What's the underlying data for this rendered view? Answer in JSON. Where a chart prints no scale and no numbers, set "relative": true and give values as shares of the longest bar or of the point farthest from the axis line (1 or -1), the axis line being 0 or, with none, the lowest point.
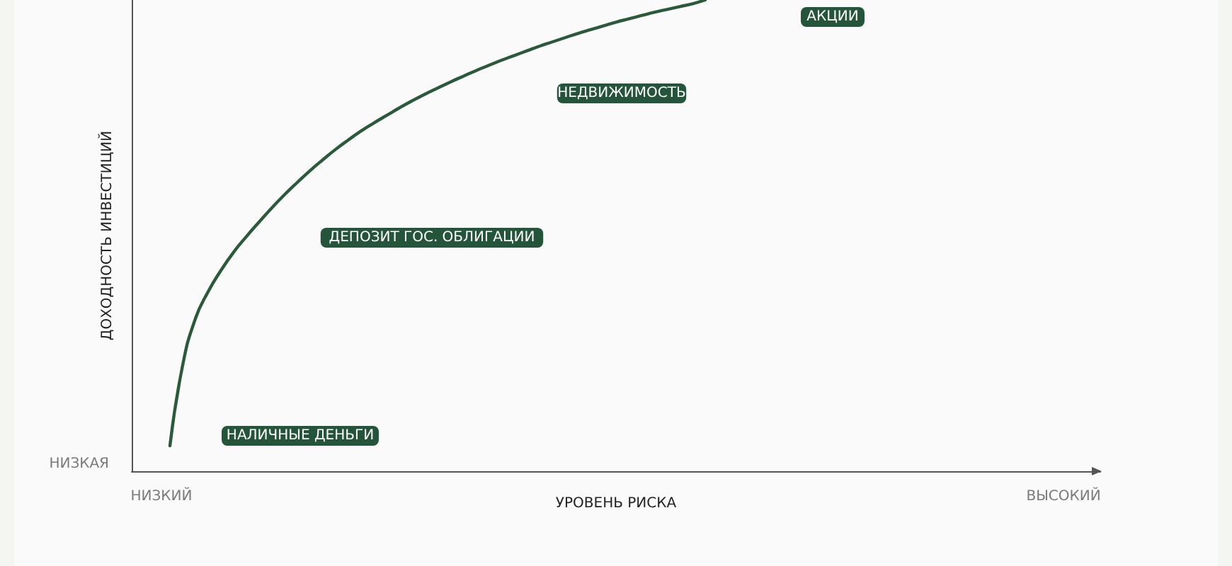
{
  "chart_data": {
    "type": "line",
    "relative": true,
    "xlabel": "УРОВЕНЬ РИСКА",
    "ylabel": "ДОХОДНОСТЬ ИНВЕСТИЦИЙ",
    "categories": [
      null,
      null,
      null,
      null,
      null,
      null,
      null,
      null,
      null,
      null,
      null,
      null,
      null,
      null,
      null,
      null,
      null,
      null,
      null,
      null,
      null,
      null,
      null,
      null,
      null,
      null,
      null,
      null,
      null,
      null,
      null,
      null,
      null,
      null,
      null,
      null,
      null,
      null,
      null,
      null,
      null,
      null,
      null,
      null,
      null,
      null,
      null,
      null,
      null,
      null,
      null,
      null,
      null,
      null,
      null,
      null,
      null,
      null,
      null,
      null,
      null,
      null,
      null,
      null,
      null,
      null,
      null,
      null,
      null,
      null,
      null,
      null,
      null,
      null,
      null,
      null,
      null
    ],
    "series": [
      {
        "color": "#2b5a3a",
        "values": [
          null,
          null,
          null,
          0.054,
          0.225,
          0.324,
          0.381,
          0.426,
          0.465,
          0.498,
          0.529,
          0.559,
          0.587,
          0.613,
          0.638,
          0.661,
          0.683,
          0.703,
          0.722,
          0.739,
          0.755,
          0.771,
          0.786,
          0.8,
          0.813,
          0.826,
          0.838,
          0.85,
          0.861,
          0.872,
          0.882,
          0.892,
          0.902,
          0.911,
          0.92,
          0.929,
          0.937,
          0.945,
          0.953,
          0.96,
          0.967,
          0.974,
          0.98,
          0.986,
          0.992,
          1.0,
          null,
          null,
          null,
          null,
          null,
          null,
          null,
          null,
          null,
          null,
          null,
          null,
          null,
          null,
          null,
          null,
          null,
          null,
          null,
          null,
          null,
          null,
          null,
          null,
          null,
          null,
          null,
          null,
          null,
          null,
          null
        ]
      }
    ],
    "annotations": [
      "АКЦИИ",
      "НЕДВИЖИМОСТЬ",
      "ДЕПОЗИТ ГОС. ОБЛИГАЦИИ",
      "НАЛИЧНЫЕ ДЕНЬГИ",
      "НИЗКАЯ",
      "НИЗКИЙ",
      "ВЫСОКИЙ"
    ],
    "grid": false,
    "line_style": "solid"
  }
}
